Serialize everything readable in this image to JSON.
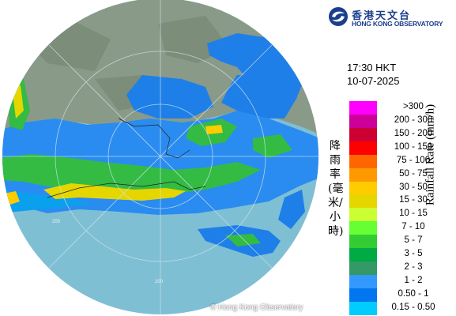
{
  "header": {
    "org_name_zh": "香港天文台",
    "org_name_en": "HONG KONG OBSERVATORY"
  },
  "timestamp": {
    "time": "17:30 HKT",
    "date": "10-07-2025"
  },
  "radar": {
    "range_ring_label": "200",
    "copyright": "© Hong Kong Observatory"
  },
  "legend": {
    "title_en": "Rainfall Rate (mm/h)",
    "title_zh": "降雨率(毫米/小時)",
    "items": [
      {
        "label": ">300",
        "color": "#ff00ff"
      },
      {
        "label": "200 - 300",
        "color": "#cc0099"
      },
      {
        "label": "150 - 200",
        "color": "#cc0033"
      },
      {
        "label": "100 - 150",
        "color": "#ff0000"
      },
      {
        "label": "75 - 100",
        "color": "#ff6600"
      },
      {
        "label": "50 - 75",
        "color": "#ff9900"
      },
      {
        "label": "30 - 50",
        "color": "#ffcc00"
      },
      {
        "label": "15 - 30",
        "color": "#e6d600"
      },
      {
        "label": "10 - 15",
        "color": "#ccff33"
      },
      {
        "label": "7 - 10",
        "color": "#66ff33"
      },
      {
        "label": "5 - 7",
        "color": "#33cc33"
      },
      {
        "label": "3 - 5",
        "color": "#00aa44"
      },
      {
        "label": "2 - 3",
        "color": "#339966"
      },
      {
        "label": "1 - 2",
        "color": "#3399ff"
      },
      {
        "label": "0.50 - 1",
        "color": "#0077ee"
      },
      {
        "label": "0.15 - 0.50",
        "color": "#00ccff"
      }
    ]
  }
}
